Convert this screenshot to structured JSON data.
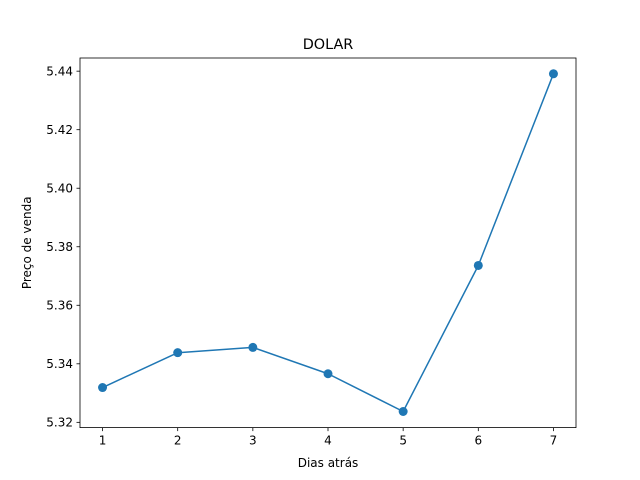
{
  "chart_data": {
    "type": "line",
    "title": "DOLAR",
    "xlabel": "Dias atrás",
    "ylabel": "Preço de venda",
    "x": [
      1,
      2,
      3,
      4,
      5,
      6,
      7
    ],
    "series": [
      {
        "values": [
          5.3319,
          5.3438,
          5.3456,
          5.3366,
          5.3237,
          5.3736,
          5.4391
        ],
        "color": "#1f77b4",
        "marker": "circle"
      }
    ],
    "xlim": [
      0.7,
      7.3
    ],
    "ylim": [
      5.3182,
      5.4445
    ],
    "xticks": [
      1,
      2,
      3,
      4,
      5,
      6,
      7
    ],
    "yticks": [
      5.32,
      5.34,
      5.36,
      5.38,
      5.4,
      5.42,
      5.44
    ],
    "ytick_labels": [
      "5.32",
      "5.34",
      "5.36",
      "5.38",
      "5.40",
      "5.42",
      "5.44"
    ],
    "grid": false,
    "legend": "none"
  }
}
